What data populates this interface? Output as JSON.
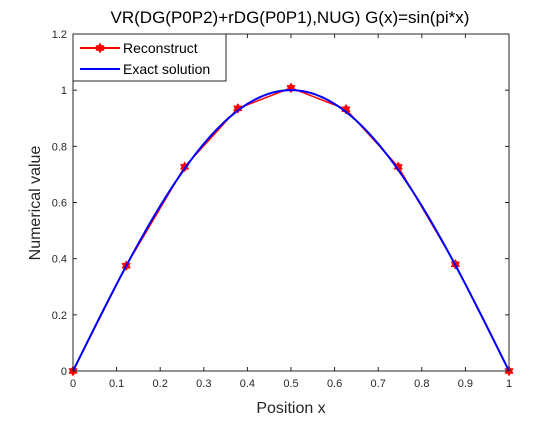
{
  "chart_data": {
    "type": "line",
    "title": "VR(DG(P0P2)+rDG(P0P1),NUG) G(x)=sin(pi*x)",
    "xlabel": "Position x",
    "ylabel": "Numerical value",
    "xlim": [
      0,
      1
    ],
    "ylim": [
      0,
      1.2
    ],
    "xticks": [
      0,
      0.1,
      0.2,
      0.3,
      0.4,
      0.5,
      0.6,
      0.7,
      0.8,
      0.9,
      1
    ],
    "xtick_labels": [
      "0",
      "0.1",
      "0.2",
      "0.3",
      "0.4",
      "0.5",
      "0.6",
      "0.7",
      "0.8",
      "0.9",
      "1"
    ],
    "yticks": [
      0,
      0.2,
      0.4,
      0.6,
      0.8,
      1,
      1.2
    ],
    "ytick_labels": [
      "0",
      "0.2",
      "0.4",
      "0.6",
      "0.8",
      "1",
      "1.2"
    ],
    "grid": false,
    "legend_position": "top-left",
    "series": [
      {
        "name": "Reconstruct",
        "color": "#ff0000",
        "marker": "hexagram",
        "x": [
          0,
          0.122,
          0.256,
          0.378,
          0.5,
          0.626,
          0.746,
          0.877,
          1
        ],
        "y": [
          0,
          0.375,
          0.727,
          0.935,
          1.008,
          0.932,
          0.727,
          0.38,
          0
        ]
      },
      {
        "name": "Exact solution",
        "color": "#0000ff",
        "function": "sin(pi*x)",
        "x_range": [
          0,
          1
        ]
      }
    ]
  }
}
